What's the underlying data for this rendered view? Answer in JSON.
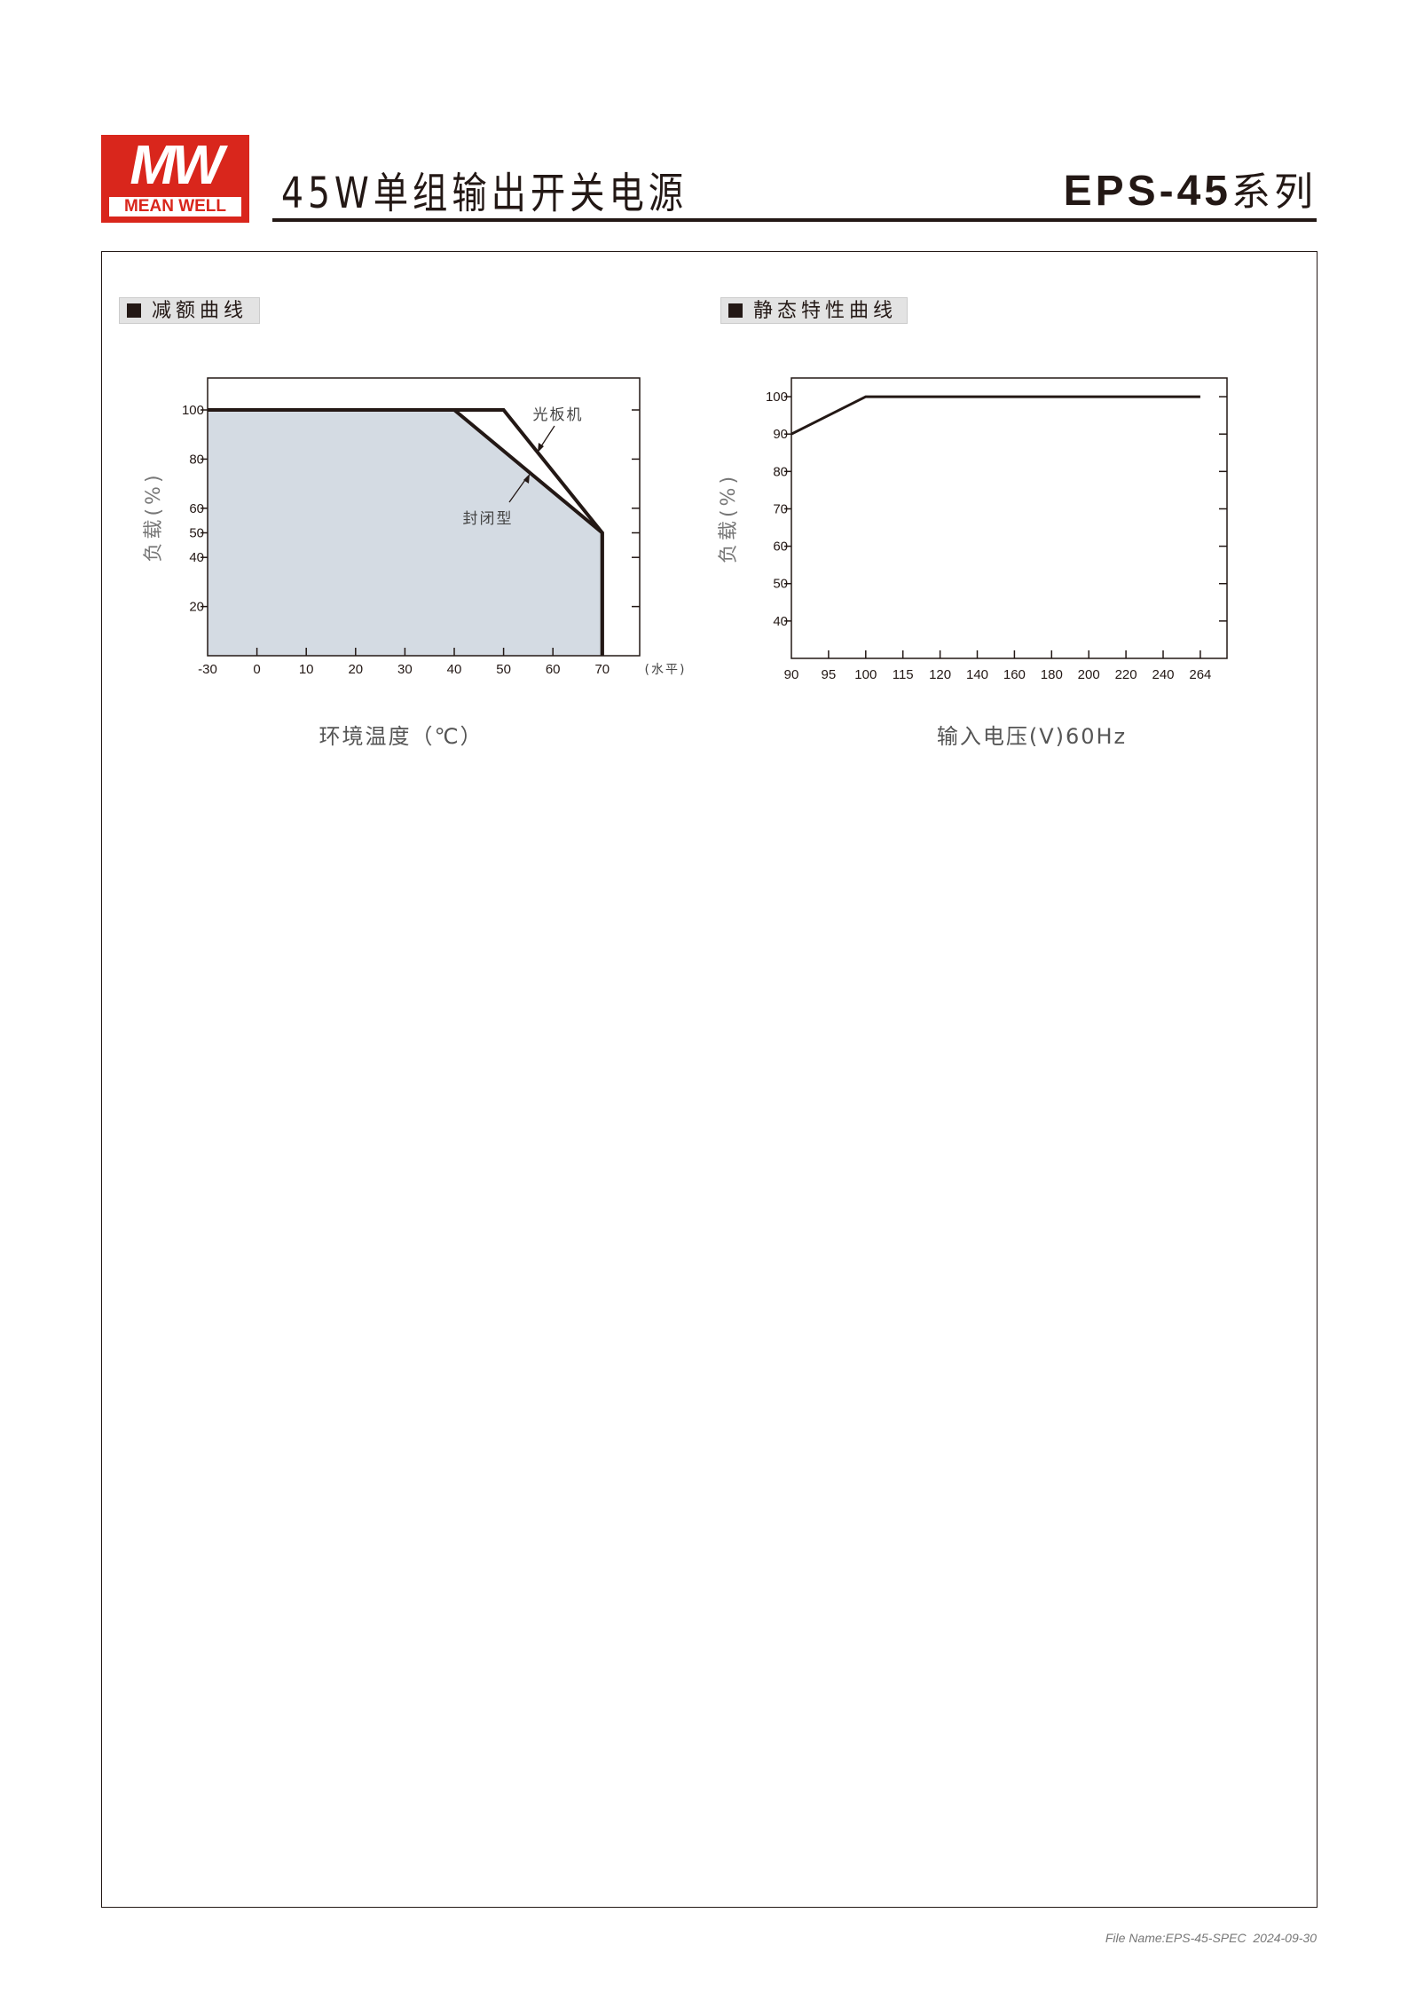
{
  "header": {
    "logo_mark": "MW",
    "logo_brand": "MEAN WELL",
    "title": "45W单组输出开关电源",
    "series_model": "EPS-45",
    "series_suffix": "系列",
    "brand_color": "#d9261c"
  },
  "sections": {
    "derating": "减额曲线",
    "static": "静态特性曲线"
  },
  "footer": {
    "file_name": "File Name:EPS-45-SPEC",
    "date": "2024-09-30"
  },
  "chart_data": [
    {
      "type": "line",
      "title": "减额曲线",
      "xlabel": "环境温度（℃）",
      "xlabel_unit_note": "(水平)",
      "ylabel": "负载(%)",
      "x_ticks": [
        -30,
        0,
        10,
        20,
        30,
        40,
        50,
        60,
        70
      ],
      "y_ticks": [
        20,
        40,
        50,
        60,
        80,
        100
      ],
      "ylim": [
        0,
        113
      ],
      "fill_color": "#d4dbe3",
      "series": [
        {
          "name": "光板机",
          "x": [
            -30,
            50,
            70,
            70
          ],
          "y": [
            100,
            100,
            50,
            0
          ]
        },
        {
          "name": "封闭型",
          "x": [
            -30,
            40,
            70,
            70
          ],
          "y": [
            100,
            100,
            50,
            0
          ]
        }
      ]
    },
    {
      "type": "line",
      "title": "静态特性曲线",
      "xlabel": "输入电压(V)60Hz",
      "ylabel": "负载(%)",
      "x_ticks": [
        90,
        95,
        100,
        115,
        120,
        140,
        160,
        180,
        200,
        220,
        240,
        264
      ],
      "y_ticks": [
        40,
        50,
        60,
        70,
        80,
        90,
        100
      ],
      "ylim": [
        30,
        105
      ],
      "series": [
        {
          "x": [
            90,
            100,
            264
          ],
          "y": [
            90,
            100,
            100
          ]
        }
      ]
    }
  ]
}
